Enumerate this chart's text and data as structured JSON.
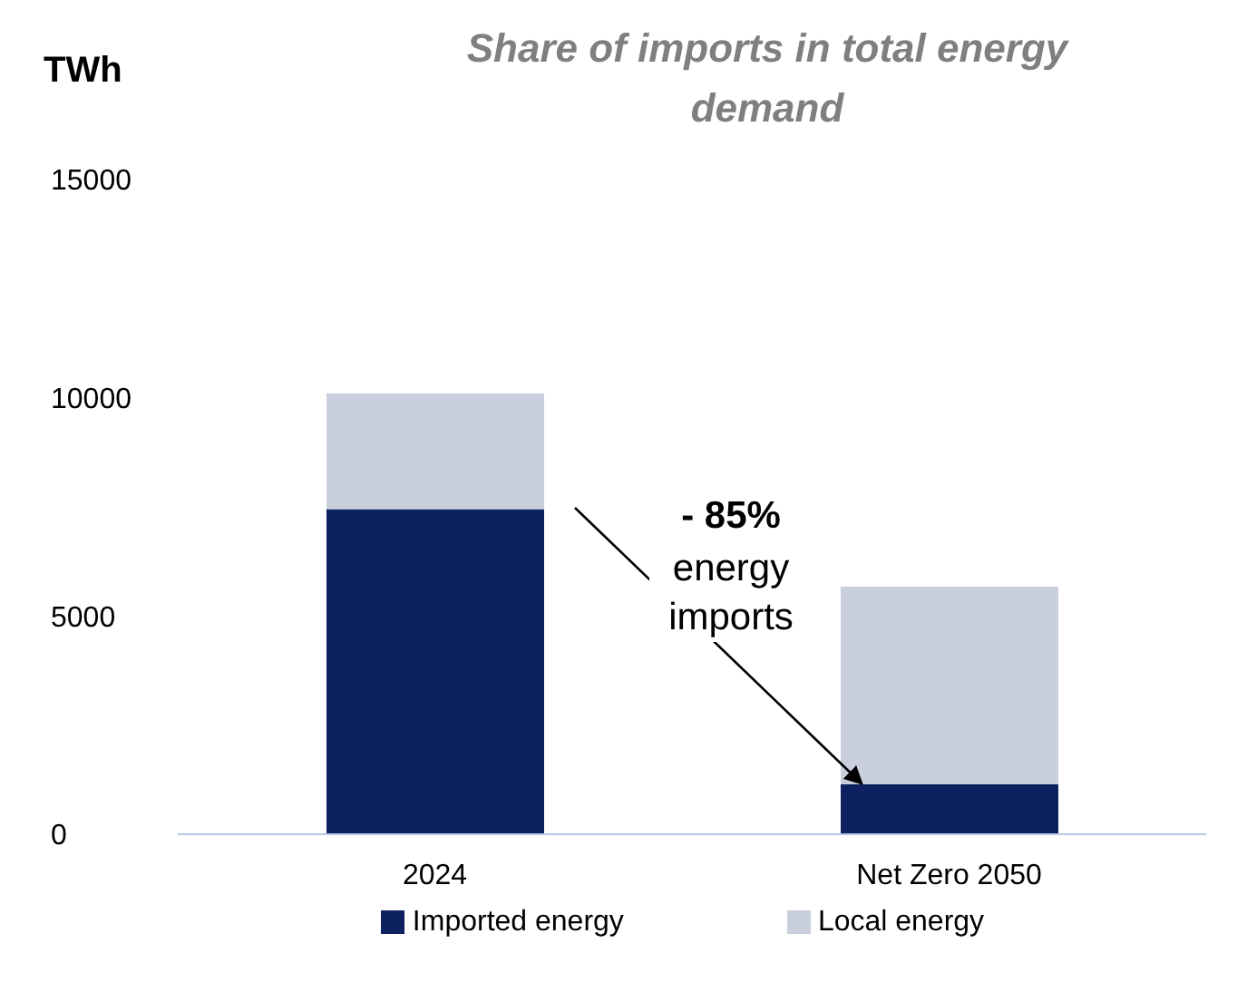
{
  "chart_data": {
    "type": "bar",
    "title": "Share of imports in total energy demand",
    "ylabel": "TWh",
    "categories": [
      "2024",
      "Net Zero 2050"
    ],
    "stacked": true,
    "series": [
      {
        "name": "Imported energy",
        "color": "#0d2160",
        "values": [
          7450,
          1150
        ]
      },
      {
        "name": "Local energy",
        "color": "#c9cfdd",
        "values": [
          2650,
          4520
        ]
      }
    ],
    "ylim": [
      0,
      15000
    ],
    "yticks": [
      0,
      5000,
      10000,
      15000
    ],
    "grid": false,
    "legend": "bottom",
    "annotations": [
      "- 85%",
      "energy imports"
    ]
  }
}
